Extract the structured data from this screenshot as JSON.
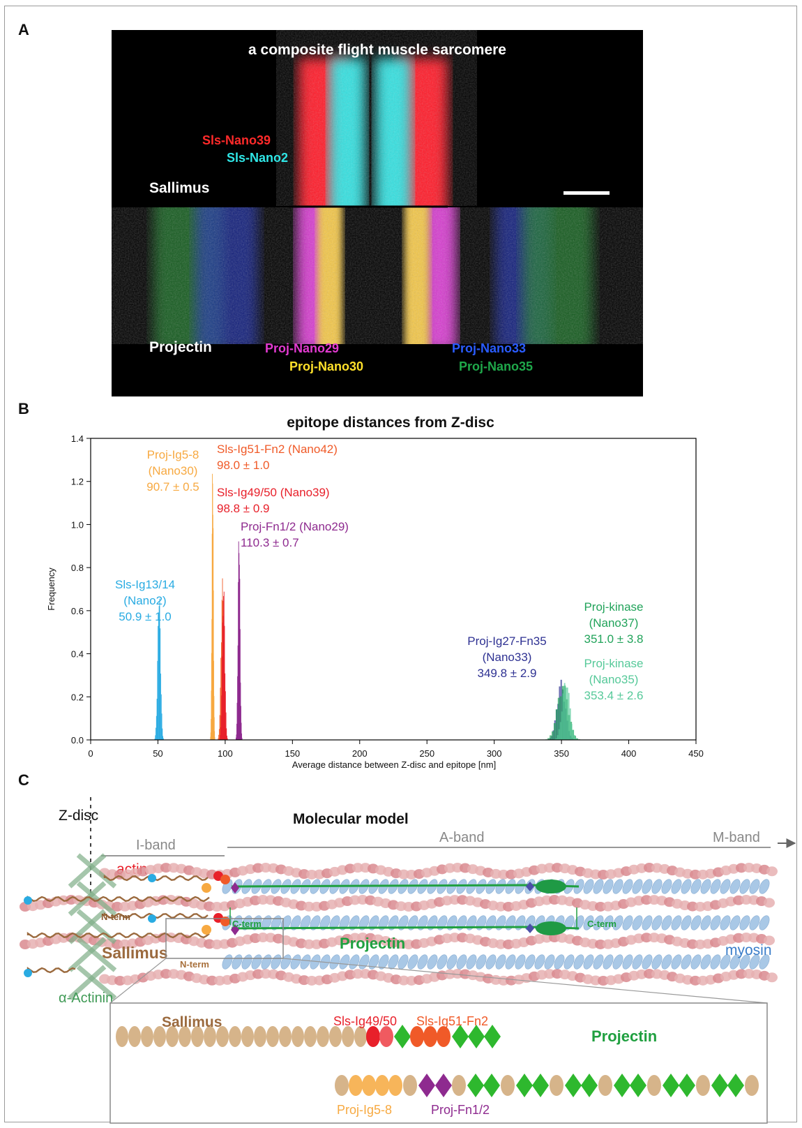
{
  "panels": {
    "a": "A",
    "b": "B",
    "c": "C"
  },
  "micrograph": {
    "title": "a composite flight muscle sarcomere",
    "sallimus_label": "Sallimus",
    "projectin_label": "Projectin",
    "stains": [
      {
        "text": "Sls-Nano39",
        "color": "#ff2a2a"
      },
      {
        "text": "Sls-Nano2",
        "color": "#2fe6e6"
      },
      {
        "text": "Proj-Nano29",
        "color": "#e23ad0"
      },
      {
        "text": "Proj-Nano30",
        "color": "#ffe12a"
      },
      {
        "text": "Proj-Nano33",
        "color": "#2a5cff"
      },
      {
        "text": "Proj-Nano35",
        "color": "#1fa84a"
      }
    ]
  },
  "chart_data": {
    "type": "bar",
    "title": "epitope distances from Z-disc",
    "xlabel": "Average distance between Z-disc and epitope [nm]",
    "ylabel": "Frequency",
    "xlim": [
      0,
      450
    ],
    "ylim": [
      0,
      1.4
    ],
    "xticks": [
      "0",
      "50",
      "100",
      "150",
      "200",
      "250",
      "300",
      "350",
      "400",
      "450"
    ],
    "yticks": [
      "0.0",
      "0.2",
      "0.4",
      "0.6",
      "0.8",
      "1.0",
      "1.2",
      "1.4"
    ],
    "series": [
      {
        "name": "Sls-Ig13/14 (Nano2)",
        "mean": 50.9,
        "sd": 1.0,
        "peak": 0.71,
        "color": "#29abe2",
        "label_lines": [
          "Sls-Ig13/14",
          "(Nano2)",
          "50.9 ± 1.0"
        ]
      },
      {
        "name": "Proj-Ig5-8 (Nano30)",
        "mean": 90.7,
        "sd": 0.5,
        "peak": 1.33,
        "color": "#f7a941",
        "label_lines": [
          "Proj-Ig5-8",
          "(Nano30)",
          "90.7 ± 0.5"
        ]
      },
      {
        "name": "Sls-Ig51-Fn2 (Nano42)",
        "mean": 98.0,
        "sd": 1.0,
        "peak": 0.75,
        "color": "#f05a28",
        "label_lines": [
          "Sls-Ig51-Fn2 (Nano42)",
          "98.0 ± 1.0"
        ]
      },
      {
        "name": "Sls-Ig49/50 (Nano39)",
        "mean": 98.8,
        "sd": 0.9,
        "peak": 0.74,
        "color": "#e8202a",
        "label_lines": [
          "Sls-Ig49/50 (Nano39)",
          "98.8 ± 0.9"
        ]
      },
      {
        "name": "Proj-Fn1/2 (Nano29)",
        "mean": 110.3,
        "sd": 0.7,
        "peak": 1.0,
        "color": "#8e2a8f",
        "label_lines": [
          "Proj-Fn1/2 (Nano29)",
          "110.3 ± 0.7"
        ]
      },
      {
        "name": "Proj-Ig27-Fn35 (Nano33)",
        "mean": 349.8,
        "sd": 2.9,
        "peak": 0.28,
        "color": "#2e3192",
        "label_lines": [
          "Proj-Ig27-Fn35",
          "(Nano33)",
          "349.8 ± 2.9"
        ]
      },
      {
        "name": "Proj-kinase (Nano37)",
        "mean": 351.0,
        "sd": 3.8,
        "peak": 0.27,
        "color": "#21a35a",
        "label_lines": [
          "Proj-kinase",
          "(Nano37)",
          "351.0 ± 3.8"
        ]
      },
      {
        "name": "Proj-kinase (Nano35)",
        "mean": 353.4,
        "sd": 2.6,
        "peak": 0.29,
        "color": "#56c999",
        "label_lines": [
          "Proj-kinase",
          "(Nano35)",
          "353.4 ± 2.6"
        ]
      }
    ]
  },
  "model": {
    "title": "Molecular model",
    "z_disc": "Z-disc",
    "i_band": "I-band",
    "a_band": "A-band",
    "m_band": "M-band",
    "actin": "actin",
    "n_term_1": "N-term",
    "n_term_2": "N-term",
    "c_term_1": "C-term",
    "c_term_2": "C-term",
    "sallimus": "Sallimus",
    "projectin": "Projectin",
    "myosin": "myosin",
    "alpha_actinin": "α-Actinin",
    "inset": {
      "sallimus": "Sallimus",
      "projectin": "Projectin",
      "sls_ig49_50": "Sls-Ig49/50",
      "sls_ig51_fn2": "Sls-Ig51-Fn2",
      "proj_ig5_8": "Proj-Ig5-8",
      "proj_fn1_2": "Proj-Fn1/2"
    }
  },
  "colors": {
    "sallimus": "#9b6a3e",
    "projectin": "#20a040",
    "actin": "#e8202a",
    "myosin": "#3a7dc9",
    "alpha_actinin": "#3f9a55",
    "band_gray": "#7a7a7a"
  }
}
